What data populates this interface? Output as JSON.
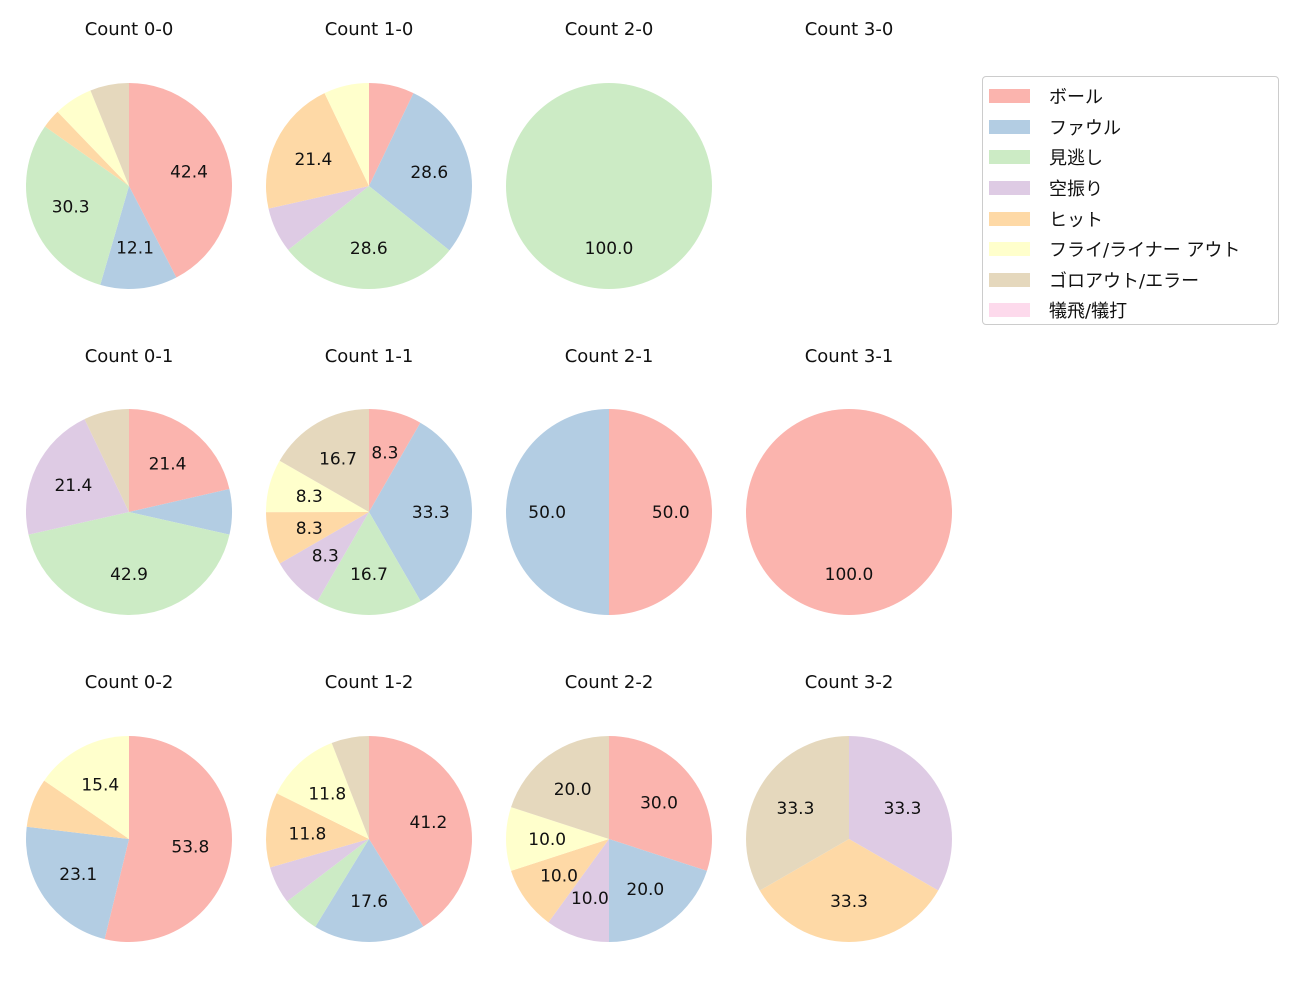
{
  "chart_data": {
    "type": "pie",
    "categories": [
      "ボール",
      "ファウル",
      "見逃し",
      "空振り",
      "ヒット",
      "フライ/ライナー アウト",
      "ゴロアウト/エラー",
      "犠飛/犠打"
    ],
    "colors": [
      "#fbb4ae",
      "#b3cde3",
      "#ccebc5",
      "#decbe4",
      "#fed9a6",
      "#ffffcc",
      "#e5d8bd",
      "#fddaec"
    ],
    "start_angle": 90,
    "direction": "clockwise",
    "legend_position": "right",
    "pies": [
      {
        "title": "Count 0-0",
        "values": [
          42.4,
          12.1,
          30.3,
          0,
          3.0,
          6.1,
          6.1,
          0
        ]
      },
      {
        "title": "Count 1-0",
        "values": [
          7.1,
          28.6,
          28.6,
          7.1,
          21.4,
          7.1,
          0,
          0
        ]
      },
      {
        "title": "Count 2-0",
        "values": [
          0,
          0,
          100.0,
          0,
          0,
          0,
          0,
          0
        ]
      },
      {
        "title": "Count 3-0",
        "values": [
          0,
          0,
          0,
          0,
          0,
          0,
          0,
          0
        ]
      },
      {
        "title": "Count 0-1",
        "values": [
          21.4,
          7.1,
          42.9,
          21.4,
          0,
          0,
          7.1,
          0
        ]
      },
      {
        "title": "Count 1-1",
        "values": [
          8.3,
          33.3,
          16.7,
          8.3,
          8.3,
          8.3,
          16.7,
          0
        ]
      },
      {
        "title": "Count 2-1",
        "values": [
          50.0,
          50.0,
          0,
          0,
          0,
          0,
          0,
          0
        ]
      },
      {
        "title": "Count 3-1",
        "values": [
          100.0,
          0,
          0,
          0,
          0,
          0,
          0,
          0
        ]
      },
      {
        "title": "Count 0-2",
        "values": [
          53.8,
          23.1,
          0,
          0,
          7.7,
          15.4,
          0,
          0
        ]
      },
      {
        "title": "Count 1-2",
        "values": [
          41.2,
          17.6,
          5.9,
          5.9,
          11.8,
          11.8,
          5.9,
          0
        ]
      },
      {
        "title": "Count 2-2",
        "values": [
          30.0,
          20.0,
          0,
          10.0,
          10.0,
          10.0,
          20.0,
          0
        ]
      },
      {
        "title": "Count 3-2",
        "values": [
          0,
          0,
          0,
          33.3,
          33.3,
          0,
          33.3,
          0
        ]
      }
    ]
  }
}
